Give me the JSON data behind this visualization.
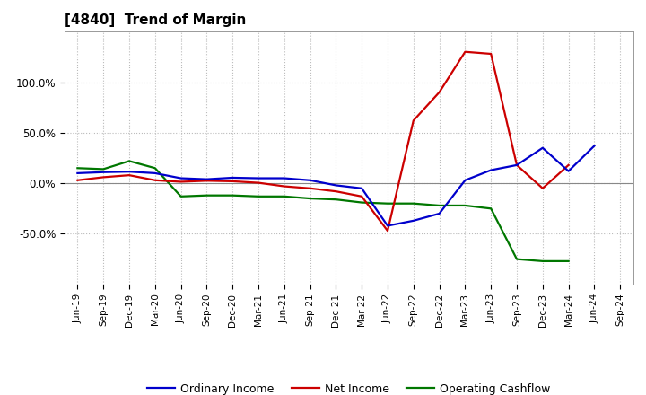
{
  "title": "[4840]  Trend of Margin",
  "x_labels": [
    "Jun-19",
    "Sep-19",
    "Dec-19",
    "Mar-20",
    "Jun-20",
    "Sep-20",
    "Dec-20",
    "Mar-21",
    "Jun-21",
    "Sep-21",
    "Dec-21",
    "Mar-22",
    "Jun-22",
    "Sep-22",
    "Dec-22",
    "Mar-23",
    "Jun-23",
    "Sep-23",
    "Dec-23",
    "Mar-24",
    "Jun-24",
    "Sep-24"
  ],
  "ordinary_income": [
    10.0,
    11.0,
    11.5,
    10.0,
    5.0,
    4.0,
    5.5,
    5.0,
    5.0,
    3.0,
    -2.0,
    -5.0,
    -42.0,
    -37.0,
    -30.0,
    3.0,
    13.0,
    18.0,
    35.0,
    12.0,
    37.0,
    null
  ],
  "net_income": [
    3.0,
    6.0,
    8.0,
    3.0,
    1.5,
    2.5,
    2.0,
    0.5,
    -3.0,
    -5.0,
    -8.0,
    -13.0,
    -47.0,
    62.0,
    90.0,
    130.0,
    128.0,
    18.0,
    -5.0,
    18.0,
    null,
    null
  ],
  "operating_cf": [
    15.0,
    14.0,
    22.0,
    15.0,
    -13.0,
    -12.0,
    -12.0,
    -13.0,
    -13.0,
    -15.0,
    -16.0,
    -19.0,
    -20.0,
    -20.0,
    -22.0,
    -22.0,
    -25.0,
    -75.0,
    -77.0,
    -77.0,
    null,
    null
  ],
  "ylim": [
    -100,
    150
  ],
  "yticks": [
    -50.0,
    0.0,
    50.0,
    100.0
  ],
  "ytick_labels": [
    "-50.0%",
    "0.0%",
    "50.0%",
    "100.0%"
  ],
  "colors": {
    "ordinary_income": "#0000cc",
    "net_income": "#cc0000",
    "operating_cf": "#007700",
    "background": "#ffffff",
    "grid": "#bbbbbb",
    "zero_line": "#888888"
  },
  "legend": {
    "ordinary_income": "Ordinary Income",
    "net_income": "Net Income",
    "operating_cf": "Operating Cashflow"
  }
}
